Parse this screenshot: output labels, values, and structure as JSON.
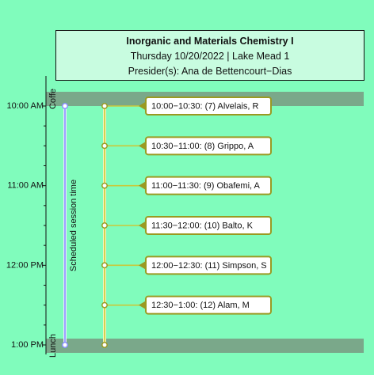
{
  "header": {
    "title": "Inorganic and Materials Chemistry I",
    "subtitle": "Thursday 10/20/2022 | Lake Mead 1",
    "presider": "Presider(s): Ana de Bettencourt−Dias"
  },
  "time_axis": {
    "start": "10:00",
    "end": "13:00",
    "ticks": [
      {
        "time": "10:00",
        "label": "10:00 AM"
      },
      {
        "time": "11:00",
        "label": "11:00 AM"
      },
      {
        "time": "12:00",
        "label": "12:00 PM"
      },
      {
        "time": "13:00",
        "label": "1:00 PM"
      }
    ],
    "minor_tick_minutes": 15
  },
  "breaks": [
    {
      "label": "Coffee",
      "visible_text": "Coffe",
      "time": "10:00"
    },
    {
      "label": "Lunch",
      "visible_text": "Lunch",
      "time": "13:00"
    }
  ],
  "session_bar": {
    "label": "Scheduled session time",
    "start": "10:00",
    "end": "13:00"
  },
  "talks": [
    {
      "start": "10:00",
      "label": "10:00−10:30: (7) Alvelais, R"
    },
    {
      "start": "10:30",
      "label": "10:30−11:00: (8) Grippo, A"
    },
    {
      "start": "11:00",
      "label": "11:00−11:30: (9) Obafemi, A"
    },
    {
      "start": "11:30",
      "label": "11:30−12:00: (10) Balto, K"
    },
    {
      "start": "12:00",
      "label": "12:00−12:30: (11) Simpson, S"
    },
    {
      "start": "12:30",
      "label": "12:30−1:00: (12) Alam, M"
    }
  ],
  "colors": {
    "background": "#80fcbc",
    "header_fill": "#c8fce0",
    "break_band": "#7aa88a",
    "talk_line": "#c9c93a",
    "talk_border": "#9a9a22",
    "session_line": "#8a90ff",
    "label_fill": "#ffffff"
  }
}
